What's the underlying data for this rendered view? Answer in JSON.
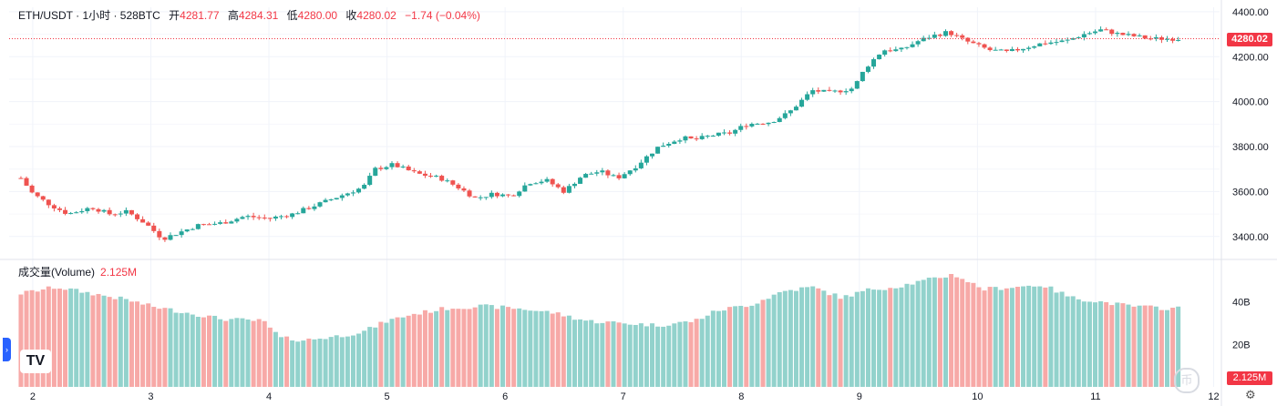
{
  "header": {
    "symbol": "ETH/USDT · 1小时 · 528BTC",
    "open_label": "开",
    "open": "4281.77",
    "high_label": "高",
    "high": "4284.31",
    "low_label": "低",
    "low": "4280.00",
    "close_label": "收",
    "close": "4280.02",
    "change": "−1.74 (−0.04%)"
  },
  "volume_pane": {
    "title": "成交量(Volume)",
    "value": "2.125M",
    "tag": "2.125M"
  },
  "last_price_tag": "4280.02",
  "logo_text": "TV",
  "watermark_text": "币",
  "colors": {
    "up": "#26a69a",
    "down": "#ef5350",
    "up_volume": "#92d2cc",
    "down_volume": "#f7a9a7",
    "grid": "#f0f3fa",
    "last_price_line": "#f23645"
  },
  "chart_data": [
    {
      "type": "candlestick",
      "title": "ETH/USDT · 1小时 · 528BTC",
      "x_tick_labels": [
        "2",
        "3",
        "4",
        "5",
        "6",
        "7",
        "8",
        "9",
        "10",
        "11",
        "12"
      ],
      "y_tick_labels": [
        "3400.00",
        "3600.00",
        "3800.00",
        "4000.00",
        "4200.00",
        "4400.00"
      ],
      "ylim": [
        3310,
        4420
      ],
      "last_price": 4280.02,
      "close_path_days": [
        1.9,
        2.0,
        2.15,
        2.3,
        2.5,
        2.65,
        2.8,
        2.95,
        3.1,
        3.25,
        3.4,
        3.6,
        3.8,
        4.0,
        4.2,
        4.35,
        4.5,
        4.65,
        4.8,
        4.9,
        5.05,
        5.25,
        5.45,
        5.6,
        5.75,
        5.9,
        6.05,
        6.2,
        6.35,
        6.5,
        6.65,
        6.8,
        6.95,
        7.1,
        7.3,
        7.5,
        7.6,
        7.75,
        7.9,
        8.05,
        8.25,
        8.4,
        8.6,
        8.75,
        8.95,
        9.05,
        9.2,
        9.35,
        9.5,
        9.6,
        9.75,
        9.9,
        10.1,
        10.25,
        10.4,
        10.55,
        10.75,
        10.9,
        11.05,
        11.2,
        11.35,
        11.45,
        11.55,
        11.65,
        11.7
      ],
      "close_path_prices": [
        3660,
        3590,
        3540,
        3500,
        3530,
        3500,
        3510,
        3460,
        3390,
        3420,
        3450,
        3460,
        3490,
        3480,
        3500,
        3530,
        3560,
        3590,
        3620,
        3700,
        3720,
        3680,
        3660,
        3620,
        3570,
        3590,
        3580,
        3640,
        3650,
        3600,
        3670,
        3690,
        3660,
        3710,
        3800,
        3840,
        3830,
        3850,
        3860,
        3900,
        3910,
        3950,
        4050,
        4040,
        4060,
        4150,
        4230,
        4230,
        4270,
        4290,
        4310,
        4270,
        4230,
        4220,
        4240,
        4260,
        4270,
        4300,
        4320,
        4300,
        4290,
        4281,
        4280,
        4280.02,
        4280.02
      ]
    },
    {
      "type": "bar",
      "title": "成交量(Volume)",
      "y_tick_labels": [
        "20B",
        "40B"
      ],
      "ylim": [
        0,
        57
      ],
      "last_value": "2.125M",
      "volume_path_days": [
        1.9,
        2.2,
        2.5,
        2.8,
        3.0,
        3.3,
        3.6,
        3.95,
        4.1,
        4.3,
        4.6,
        4.8,
        5.0,
        5.2,
        5.5,
        5.8,
        6.1,
        6.4,
        6.7,
        7.0,
        7.3,
        7.6,
        7.8,
        8.1,
        8.35,
        8.6,
        8.85,
        9.1,
        9.3,
        9.55,
        9.8,
        10.05,
        10.3,
        10.55,
        10.8,
        11.05,
        11.3,
        11.6
      ],
      "volume_path_values": [
        44,
        47,
        44,
        41,
        38,
        35,
        32,
        31,
        23,
        22,
        24,
        26,
        31,
        34,
        37,
        38,
        37,
        35,
        31,
        30,
        29,
        31,
        36,
        39,
        45,
        47,
        42,
        46,
        47,
        50,
        53,
        46,
        47,
        48,
        42,
        40,
        38,
        37
      ]
    }
  ]
}
